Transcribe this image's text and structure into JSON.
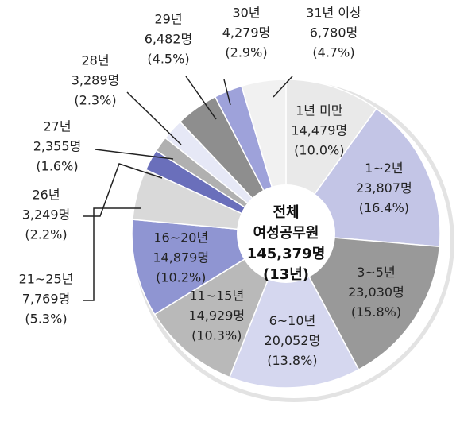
{
  "chart_data": {
    "type": "donut",
    "center_label": [
      "전체",
      "여성공무원",
      "145,379명",
      "(13년)"
    ],
    "categories": [
      "1년 미만",
      "1~2년",
      "3~5년",
      "6~10년",
      "11~15년",
      "16~20년",
      "21~25년",
      "26년",
      "27년",
      "28년",
      "29년",
      "30년",
      "31년 이상"
    ],
    "values": [
      14479,
      23807,
      23030,
      20052,
      14929,
      14879,
      7769,
      3249,
      2355,
      3289,
      6482,
      4279,
      6780
    ],
    "value_labels": [
      "14,479명",
      "23,807명",
      "23,030명",
      "20,052명",
      "14,929명",
      "14,879명",
      "7,769명",
      "3,249명",
      "2,355명",
      "3,289명",
      "6,482명",
      "4,279명",
      "6,780명"
    ],
    "percents": [
      10.0,
      16.4,
      15.8,
      13.8,
      10.3,
      10.2,
      5.3,
      2.2,
      1.6,
      2.3,
      4.5,
      2.9,
      4.7
    ],
    "percent_labels": [
      "(10.0%)",
      "(16.4%)",
      "(15.8%)",
      "(13.8%)",
      "(10.3%)",
      "(10.2%)",
      "(5.3%)",
      "(2.2%)",
      "(1.6%)",
      "(2.3%)",
      "(4.5%)",
      "(2.9%)",
      "(4.7%)"
    ],
    "colors": [
      "#e9e9e9",
      "#c3c5e6",
      "#999999",
      "#d5d7ef",
      "#b9b9b9",
      "#8f95d2",
      "#d9d9d9",
      "#6a6fbb",
      "#b0b0b0",
      "#e6e8f6",
      "#8e8e8e",
      "#9ea2da",
      "#f1f1f1"
    ]
  }
}
